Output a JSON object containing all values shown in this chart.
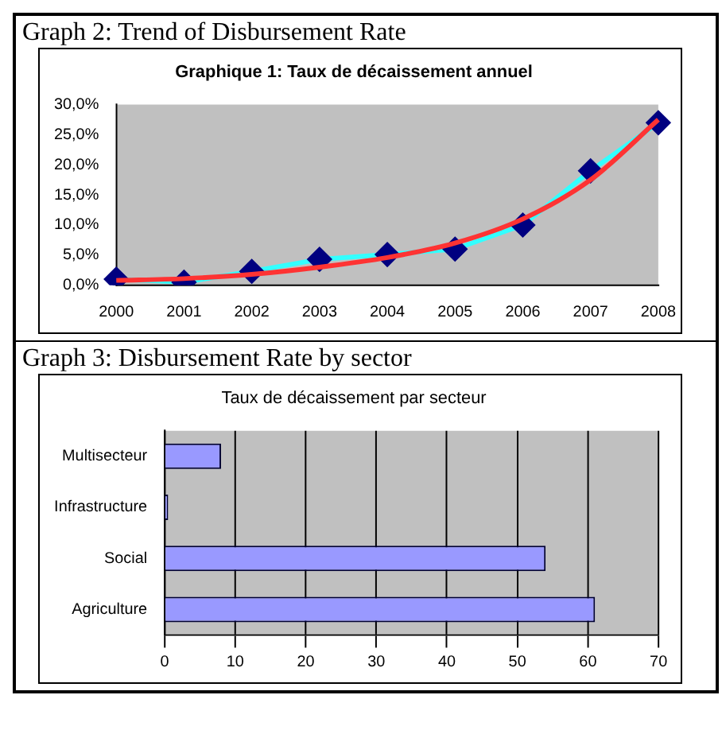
{
  "chart_data": [
    {
      "type": "line",
      "title": "Graph 2: Trend of Disbursement Rate",
      "subtitle": "Graphique 1: Taux de décaissement annuel",
      "categories": [
        "2000",
        "2001",
        "2002",
        "2003",
        "2004",
        "2005",
        "2006",
        "2007",
        "2008"
      ],
      "series": [
        {
          "color": "#33ffff",
          "values": [
            1.0,
            0.5,
            2.3,
            4.3,
            5.1,
            6.0,
            10.0,
            19.0,
            27.0
          ],
          "marker": "diamond"
        },
        {
          "color": "#ff3333",
          "values": [
            0.8,
            1.1,
            1.8,
            3.0,
            4.6,
            7.0,
            11.0,
            17.5,
            27.5
          ],
          "marker": "none"
        }
      ],
      "ylim": [
        0,
        30
      ],
      "yticks": [
        {
          "value": 0,
          "label": "0,0%"
        },
        {
          "value": 5,
          "label": "5,0%"
        },
        {
          "value": 10,
          "label": "10,0%"
        },
        {
          "value": 15,
          "label": "15,0%"
        },
        {
          "value": 20,
          "label": "20,0%"
        },
        {
          "value": 25,
          "label": "25,0%"
        },
        {
          "value": 30,
          "label": "30,0%"
        }
      ],
      "grid": false,
      "legend": false,
      "line_style": "solid"
    },
    {
      "type": "bar",
      "orientation": "horizontal",
      "title": "Graph 3: Disbursement Rate by sector",
      "subtitle": "Taux de décaissement par secteur",
      "categories": [
        "Multisecteur",
        "Infrastructure",
        "Social",
        "Agriculture"
      ],
      "values": [
        8,
        0.5,
        54,
        61
      ],
      "color": "#9999ff",
      "xlim": [
        0,
        70
      ],
      "xticks": [
        0,
        10,
        20,
        30,
        40,
        50,
        60,
        70
      ],
      "grid": "x",
      "legend": false
    }
  ]
}
